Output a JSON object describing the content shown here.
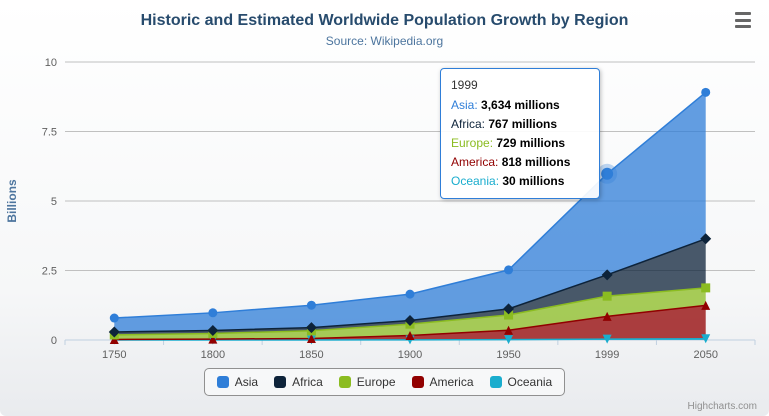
{
  "chart_data": {
    "type": "area",
    "stacking": "normal",
    "title": "Historic and Estimated Worldwide Population Growth by Region",
    "subtitle": "Source: Wikipedia.org",
    "xlabel": "",
    "ylabel": "Billions",
    "unit": "millions",
    "categories": [
      "1750",
      "1800",
      "1850",
      "1900",
      "1950",
      "1999",
      "2050"
    ],
    "ylim": [
      0,
      10
    ],
    "yticks": [
      0,
      2.5,
      5,
      7.5,
      10
    ],
    "grid": true,
    "legend_position": "bottom",
    "stack_order_bottom_to_top": [
      "Oceania",
      "America",
      "Europe",
      "Africa",
      "Asia"
    ],
    "series": [
      {
        "name": "Asia",
        "color": "#2f7ed8",
        "marker": "circle",
        "values": [
          502,
          635,
          809,
          947,
          1402,
          3634,
          5268
        ]
      },
      {
        "name": "Africa",
        "color": "#0d233a",
        "marker": "diamond",
        "values": [
          106,
          107,
          111,
          133,
          221,
          767,
          1766
        ]
      },
      {
        "name": "Europe",
        "color": "#8bbc21",
        "marker": "square",
        "values": [
          163,
          203,
          276,
          408,
          547,
          729,
          628
        ]
      },
      {
        "name": "America",
        "color": "#910000",
        "marker": "triangle",
        "values": [
          18,
          31,
          54,
          156,
          339,
          818,
          1201
        ]
      },
      {
        "name": "Oceania",
        "color": "#1aadce",
        "marker": "triangle-down",
        "values": [
          2,
          2,
          2,
          6,
          13,
          30,
          46
        ]
      }
    ]
  },
  "tooltip": {
    "header": "1999",
    "highlight_series": "Asia",
    "rows": [
      {
        "name": "Asia",
        "color": "#2f7ed8",
        "value": "3,634 millions"
      },
      {
        "name": "Africa",
        "color": "#0d233a",
        "value": "767 millions"
      },
      {
        "name": "Europe",
        "color": "#8bbc21",
        "value": "729 millions"
      },
      {
        "name": "America",
        "color": "#910000",
        "value": "818 millions"
      },
      {
        "name": "Oceania",
        "color": "#1aadce",
        "value": "30 millions"
      }
    ]
  },
  "credits": {
    "label": "Highcharts.com"
  },
  "icons": {
    "context_menu": "hamburger-icon"
  }
}
